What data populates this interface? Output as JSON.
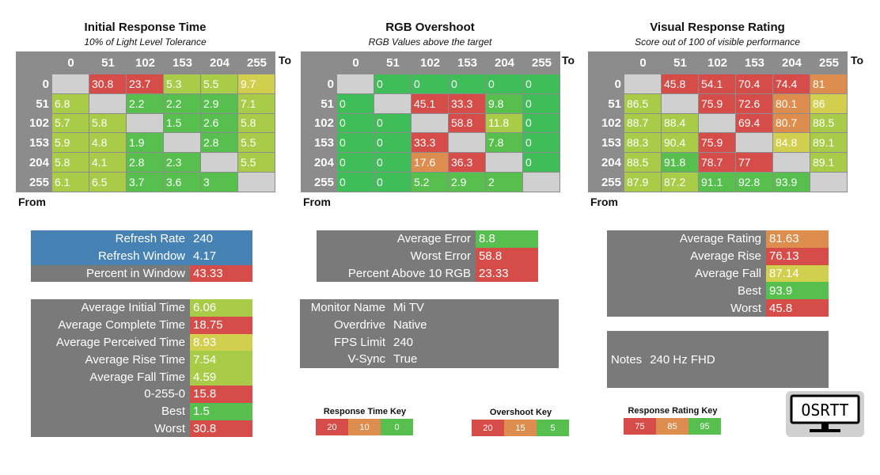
{
  "colors": {
    "header_gray": "#8c8c8c",
    "panel_gray": "#7a7a7a",
    "diag": "#d0d0d0",
    "blue": "#4682b4",
    "red": "#d64c48",
    "orange": "#dd8e4e",
    "yellow": "#d2ce4e",
    "lime": "#a8cc48",
    "green": "#56bf4e",
    "brightgreen": "#3fbd58"
  },
  "chart_data": [
    {
      "type": "heatmap",
      "title": "Initial Response Time",
      "subtitle": "10% of Light Level Tolerance",
      "xlabel": "To",
      "ylabel": "From",
      "columns": [
        "0",
        "51",
        "102",
        "153",
        "204",
        "255"
      ],
      "rows": [
        "0",
        "51",
        "102",
        "153",
        "204",
        "255"
      ],
      "values": [
        [
          null,
          "30.8",
          "23.7",
          "5.3",
          "5.5",
          "9.7"
        ],
        [
          "6.8",
          null,
          "2.2",
          "2.2",
          "2.9",
          "7.1"
        ],
        [
          "5.7",
          "5.8",
          null,
          "1.5",
          "2.6",
          "5.8"
        ],
        [
          "5.9",
          "4.8",
          "1.9",
          null,
          "2.8",
          "5.5"
        ],
        [
          "5.8",
          "4.1",
          "2.8",
          "2.3",
          null,
          "5.5"
        ],
        [
          "6.1",
          "6.5",
          "3.7",
          "3.6",
          "3",
          null
        ]
      ],
      "cell_colors": [
        [
          "diag",
          "red",
          "red",
          "lime",
          "lime",
          "yellow"
        ],
        [
          "lime",
          "diag",
          "green",
          "green",
          "green",
          "lime"
        ],
        [
          "lime",
          "lime",
          "diag",
          "green",
          "green",
          "lime"
        ],
        [
          "lime",
          "lime",
          "green",
          "diag",
          "green",
          "lime"
        ],
        [
          "lime",
          "lime",
          "green",
          "green",
          "diag",
          "lime"
        ],
        [
          "lime",
          "lime",
          "green",
          "green",
          "green",
          "diag"
        ]
      ]
    },
    {
      "type": "heatmap",
      "title": "RGB Overshoot",
      "subtitle": "RGB Values above the target",
      "xlabel": "To",
      "ylabel": "From",
      "columns": [
        "0",
        "51",
        "102",
        "153",
        "204",
        "255"
      ],
      "rows": [
        "0",
        "51",
        "102",
        "153",
        "204",
        "255"
      ],
      "values": [
        [
          null,
          "0",
          "0",
          "0",
          "0",
          "0"
        ],
        [
          "0",
          null,
          "45.1",
          "33.3",
          "9.8",
          "0"
        ],
        [
          "0",
          "0",
          null,
          "58.8",
          "11.8",
          "0"
        ],
        [
          "0",
          "0",
          "33.3",
          null,
          "7.8",
          "0"
        ],
        [
          "0",
          "0",
          "17.6",
          "36.3",
          null,
          "0"
        ],
        [
          "0",
          "0",
          "5.2",
          "2.9",
          "2",
          null
        ]
      ],
      "cell_colors": [
        [
          "diag",
          "brightgreen",
          "brightgreen",
          "brightgreen",
          "brightgreen",
          "brightgreen"
        ],
        [
          "brightgreen",
          "diag",
          "red",
          "red",
          "green",
          "brightgreen"
        ],
        [
          "brightgreen",
          "brightgreen",
          "diag",
          "red",
          "lime",
          "brightgreen"
        ],
        [
          "brightgreen",
          "brightgreen",
          "red",
          "diag",
          "green",
          "brightgreen"
        ],
        [
          "brightgreen",
          "brightgreen",
          "orange",
          "red",
          "diag",
          "brightgreen"
        ],
        [
          "brightgreen",
          "brightgreen",
          "green",
          "green",
          "green",
          "diag"
        ]
      ]
    },
    {
      "type": "heatmap",
      "title": "Visual Response Rating",
      "subtitle": "Score out of 100 of visible performance",
      "xlabel": "To",
      "ylabel": "From",
      "columns": [
        "0",
        "51",
        "102",
        "153",
        "204",
        "255"
      ],
      "rows": [
        "0",
        "51",
        "102",
        "153",
        "204",
        "255"
      ],
      "values": [
        [
          null,
          "45.8",
          "54.1",
          "70.4",
          "74.4",
          "81"
        ],
        [
          "86.5",
          null,
          "75.9",
          "72.6",
          "80.1",
          "86"
        ],
        [
          "88.7",
          "88.4",
          null,
          "69.4",
          "80.7",
          "88.5"
        ],
        [
          "88.3",
          "90.4",
          "75.9",
          null,
          "84.8",
          "89.1"
        ],
        [
          "88.5",
          "91.8",
          "78.7",
          "77",
          null,
          "89.1"
        ],
        [
          "87.9",
          "87.2",
          "91.1",
          "92.8",
          "93.9",
          null
        ]
      ],
      "cell_colors": [
        [
          "diag",
          "red",
          "red",
          "red",
          "red",
          "orange"
        ],
        [
          "lime",
          "diag",
          "red",
          "red",
          "orange",
          "yellow"
        ],
        [
          "lime",
          "lime",
          "diag",
          "red",
          "orange",
          "lime"
        ],
        [
          "lime",
          "lime",
          "red",
          "diag",
          "yellow",
          "lime"
        ],
        [
          "lime",
          "green",
          "red",
          "red",
          "diag",
          "lime"
        ],
        [
          "lime",
          "lime",
          "green",
          "green",
          "green",
          "diag"
        ]
      ]
    }
  ],
  "refresh": [
    {
      "label": "Refresh Rate",
      "value": "240",
      "bg": "blue",
      "vbg": "blue"
    },
    {
      "label": "Refresh Window",
      "value": "4.17",
      "bg": "blue",
      "vbg": "blue"
    },
    {
      "label": "Percent in Window",
      "value": "43.33",
      "bg": "panel_gray",
      "vbg": "red"
    }
  ],
  "response_stats": [
    {
      "label": "Average Initial Time",
      "value": "6.06",
      "color": "lime"
    },
    {
      "label": "Average Complete Time",
      "value": "18.75",
      "color": "red"
    },
    {
      "label": "Average Perceived Time",
      "value": "8.93",
      "color": "yellow"
    },
    {
      "label": "Average Rise Time",
      "value": "7.54",
      "color": "lime"
    },
    {
      "label": "Average Fall Time",
      "value": "4.59",
      "color": "lime"
    },
    {
      "label": "0-255-0",
      "value": "15.8",
      "color": "red"
    },
    {
      "label": "Best",
      "value": "1.5",
      "color": "green"
    },
    {
      "label": "Worst",
      "value": "30.8",
      "color": "red"
    }
  ],
  "overshoot_stats": [
    {
      "label": "Average Error",
      "value": "8.8",
      "color": "green"
    },
    {
      "label": "Worst Error",
      "value": "58.8",
      "color": "red"
    },
    {
      "label": "Percent Above 10 RGB",
      "value": "23.33",
      "color": "red"
    }
  ],
  "monitor_info": [
    {
      "label": "Monitor Name",
      "value": "Mi TV"
    },
    {
      "label": "Overdrive",
      "value": "Native"
    },
    {
      "label": "FPS Limit",
      "value": "240"
    },
    {
      "label": "V-Sync",
      "value": "True"
    }
  ],
  "rating_stats": [
    {
      "label": "Average Rating",
      "value": "81.63",
      "color": "orange"
    },
    {
      "label": "Average Rise",
      "value": "76.13",
      "color": "red"
    },
    {
      "label": "Average Fall",
      "value": "87.14",
      "color": "yellow"
    },
    {
      "label": "Best",
      "value": "93.9",
      "color": "green"
    },
    {
      "label": "Worst",
      "value": "45.8",
      "color": "red"
    }
  ],
  "notes": {
    "label": "Notes",
    "value": "240 Hz FHD"
  },
  "keys": [
    {
      "title": "Response Time Key",
      "cells": [
        {
          "v": "20",
          "c": "red"
        },
        {
          "v": "10",
          "c": "orange"
        },
        {
          "v": "0",
          "c": "green"
        }
      ]
    },
    {
      "title": "Overshoot Key",
      "cells": [
        {
          "v": "20",
          "c": "red"
        },
        {
          "v": "15",
          "c": "orange"
        },
        {
          "v": "5",
          "c": "green"
        }
      ]
    },
    {
      "title": "Response Rating Key",
      "cells": [
        {
          "v": "75",
          "c": "red"
        },
        {
          "v": "85",
          "c": "orange"
        },
        {
          "v": "95",
          "c": "green"
        }
      ]
    }
  ],
  "logo": {
    "text": "OSRTT"
  }
}
